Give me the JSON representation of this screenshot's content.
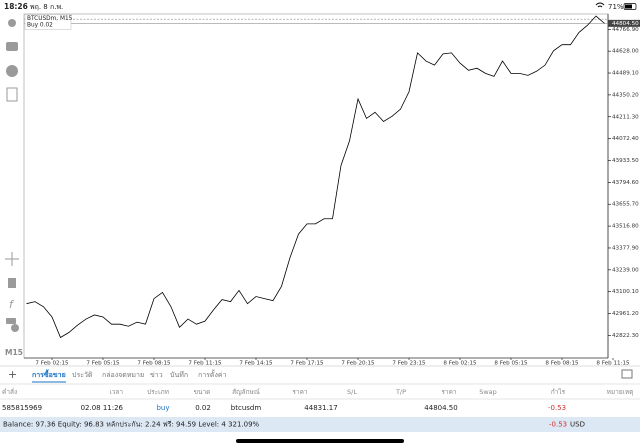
{
  "status_bar": {
    "time": "18:26",
    "date": "พฤ. 8 ก.พ.",
    "battery": "71%"
  },
  "sidebar": {
    "timeframe": "M15"
  },
  "chart_data": {
    "type": "line",
    "title": "BTCUSDm, M15",
    "subtitle": "Buy 0.02",
    "color": "#000000",
    "grid": false,
    "x": [
      null,
      null,
      null,
      "7 Feb 02:15",
      null,
      null,
      null,
      null,
      null,
      "7 Feb 05:15",
      null,
      null,
      null,
      null,
      null,
      "7 Feb 08:15",
      null,
      null,
      null,
      null,
      null,
      "7 Feb 11:15",
      null,
      null,
      null,
      null,
      null,
      "7 Feb 14:15",
      null,
      null,
      null,
      null,
      null,
      "7 Feb 17:15",
      null,
      null,
      null,
      null,
      null,
      "7 Feb 20:15",
      null,
      null,
      null,
      null,
      null,
      "7 Feb 23:15",
      null,
      null,
      null,
      null,
      null,
      "8 Feb 02:15",
      null,
      null,
      null,
      null,
      null,
      "8 Feb 05:15",
      null,
      null,
      null,
      null,
      null,
      "8 Feb 08:15",
      null,
      null,
      null,
      null,
      null,
      "8 Feb 11:15"
    ],
    "values": [
      43023.9,
      43036.9,
      43004.4,
      42939.4,
      42809.3,
      42841.8,
      42887.3,
      42926.3,
      42952.4,
      42939.4,
      42893.8,
      42893.8,
      42880.8,
      42906.8,
      42893.8,
      43056.4,
      43095.4,
      43004.4,
      42874.3,
      42926.3,
      42893.8,
      42913.3,
      42984.9,
      43049.9,
      43036.9,
      43108.4,
      43023.9,
      43069.4,
      43056.4,
      43043.4,
      43134.4,
      43316.5,
      43466.1,
      43531.1,
      43531.1,
      43563.6,
      43563.6,
      43901.8,
      44057.9,
      44324.5,
      44200.9,
      44240.0,
      44181.4,
      44213.9,
      44259.5,
      44370.0,
      44617.1,
      44565.1,
      44539.1,
      44610.6,
      44617.1,
      44552.1,
      44506.6,
      44519.6,
      44487.1,
      44467.6,
      44565.1,
      44487.1,
      44487.1,
      44474.1,
      44500.1,
      44539.1,
      44630.1,
      44669.2,
      44669.2,
      44747.2,
      44792.7,
      44851.2,
      44804.5,
      null
    ],
    "ylim": [
      42679,
      44864
    ],
    "yticks": [
      {
        "value": 42822.3,
        "label": "42822.30"
      },
      {
        "value": 42961.2,
        "label": "42961.20"
      },
      {
        "value": 43100.1,
        "label": "43100.10"
      },
      {
        "value": 43239,
        "label": "43239.00"
      },
      {
        "value": 43377.9,
        "label": "43377.90"
      },
      {
        "value": 43516.8,
        "label": "43516.80"
      },
      {
        "value": 43655.7,
        "label": "43655.70"
      },
      {
        "value": 43794.6,
        "label": "43794.60"
      },
      {
        "value": 43933.5,
        "label": "43933.50"
      },
      {
        "value": 44072.4,
        "label": "44072.40"
      },
      {
        "value": 44211.3,
        "label": "44211.30"
      },
      {
        "value": 44350.2,
        "label": "44350.20"
      },
      {
        "value": 44489.1,
        "label": "44489.10"
      },
      {
        "value": 44628,
        "label": "44628.00"
      },
      {
        "value": 44766.9,
        "label": "44766.90"
      }
    ],
    "current_price": {
      "value": 44804.5,
      "label": "44804.50"
    }
  },
  "tabs": [
    "การซื้อขาย",
    "ประวัติ",
    "กล่องจดหมาย",
    "ข่าว",
    "บันทึก",
    "การตั้งค่า"
  ],
  "active_tab": 0,
  "positions": {
    "columns": [
      "คำสั่ง",
      "เวลา",
      "ประเภท",
      "ขนาด",
      "สัญลักษณ์",
      "ราคา",
      "S/L",
      "T/P",
      "ราคา",
      "Swap",
      "กำไร",
      "หมายเหตุ"
    ],
    "rows": [
      {
        "order": "585815969",
        "time": "02.08 11:26",
        "type": "buy",
        "size": "0.02",
        "symbol": "btcusdm",
        "price": 44831.17,
        "current_price": "44804.50",
        "profit": "-0.53"
      }
    ]
  },
  "balance_bar": {
    "summary": "Balance: 97.36 Equity: 96.83 หลักประกัน: 2.24 ฟรี: 94.59 Level: 4 321.09%",
    "profit": "-0.53",
    "currency": "USD"
  }
}
